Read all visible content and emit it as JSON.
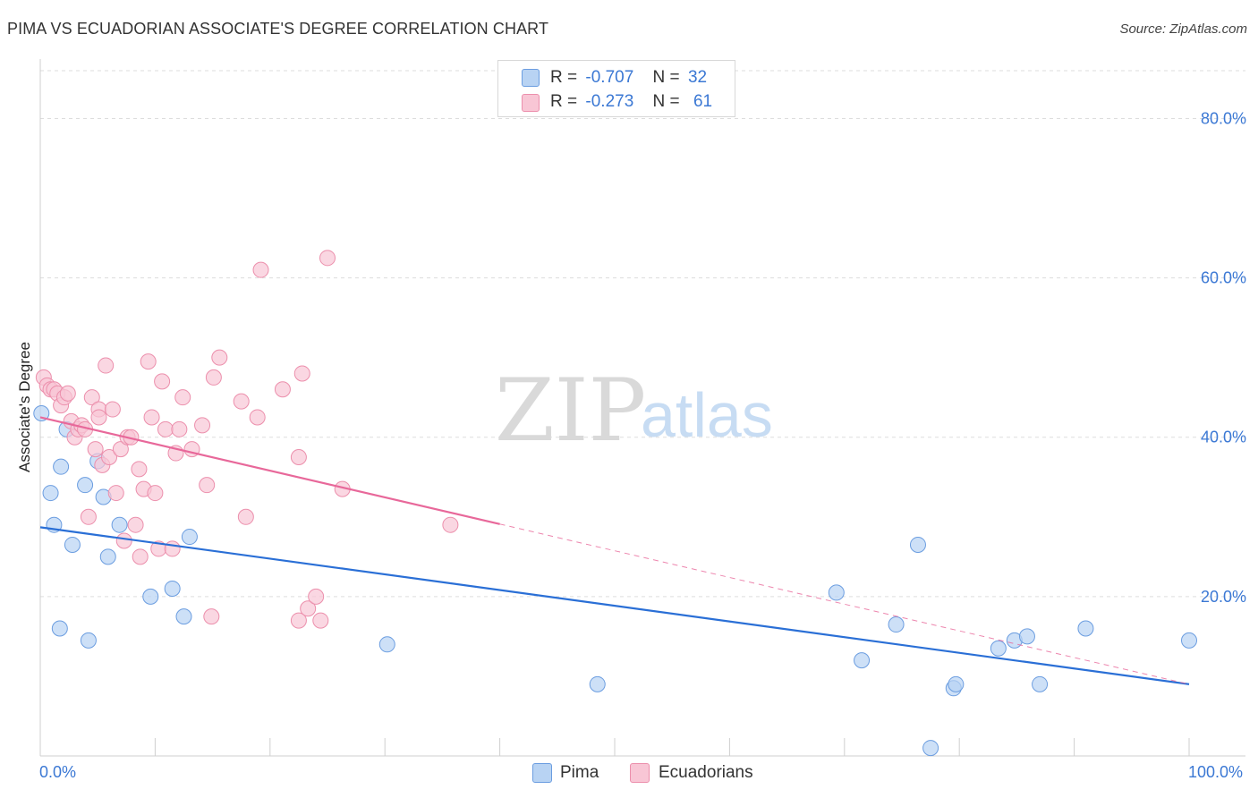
{
  "header": {
    "title": "PIMA VS ECUADORIAN ASSOCIATE'S DEGREE CORRELATION CHART",
    "source": "Source: ZipAtlas.com"
  },
  "legend": {
    "pima": {
      "r_label": "R =",
      "r_value": "-0.707",
      "n_label": "N =",
      "n_value": "32"
    },
    "ecuadorians": {
      "r_label": "R =",
      "r_value": "-0.273",
      "n_label": "N =",
      "n_value": "61"
    }
  },
  "bottom_legend": {
    "pima": "Pima",
    "ecuadorians": "Ecuadorians"
  },
  "watermark": {
    "zip": "ZIP",
    "atlas": "atlas"
  },
  "colors": {
    "pima_fill": "#b8d3f3",
    "pima_stroke": "#6b9de0",
    "pima_line": "#2a6fd6",
    "ecu_fill": "#f8c6d5",
    "ecu_stroke": "#ec8fac",
    "ecu_line": "#e8689a",
    "tick_text": "#3b78d4",
    "grid": "#dddddd"
  },
  "chart_data": {
    "type": "scatter",
    "title": "PIMA VS ECUADORIAN ASSOCIATE'S DEGREE CORRELATION CHART",
    "xlabel": "",
    "ylabel": "Associate's Degree",
    "xlim": [
      0,
      100
    ],
    "ylim": [
      0,
      86
    ],
    "x_tick_labels": [
      "0.0%",
      "100.0%"
    ],
    "y_ticks": [
      20,
      40,
      60,
      80
    ],
    "y_tick_labels": [
      "20.0%",
      "40.0%",
      "60.0%",
      "80.0%"
    ],
    "grid": true,
    "series": [
      {
        "name": "Pima",
        "trend": {
          "x0": 0,
          "y0": 28.7,
          "x1": 100,
          "y1": 9.0,
          "solid_to": 100
        },
        "points": [
          [
            0.1,
            43.0
          ],
          [
            0.9,
            33.0
          ],
          [
            1.2,
            29.0
          ],
          [
            1.7,
            16.0
          ],
          [
            1.8,
            36.3
          ],
          [
            2.3,
            41.0
          ],
          [
            2.8,
            26.5
          ],
          [
            3.9,
            34.0
          ],
          [
            4.2,
            14.5
          ],
          [
            5.0,
            37.0
          ],
          [
            5.5,
            32.5
          ],
          [
            5.9,
            25.0
          ],
          [
            6.9,
            29.0
          ],
          [
            9.6,
            20.0
          ],
          [
            11.5,
            21.0
          ],
          [
            12.5,
            17.5
          ],
          [
            13.0,
            27.5
          ],
          [
            30.2,
            14.0
          ],
          [
            48.5,
            9.0
          ],
          [
            69.3,
            20.5
          ],
          [
            71.5,
            12.0
          ],
          [
            74.5,
            16.5
          ],
          [
            76.4,
            26.5
          ],
          [
            77.5,
            1.0
          ],
          [
            79.5,
            8.5
          ],
          [
            79.7,
            9.0
          ],
          [
            83.4,
            13.5
          ],
          [
            84.8,
            14.5
          ],
          [
            85.9,
            15.0
          ],
          [
            87.0,
            9.0
          ],
          [
            91.0,
            16.0
          ],
          [
            100.0,
            14.5
          ]
        ]
      },
      {
        "name": "Ecuadorians",
        "trend": {
          "x0": 0,
          "y0": 42.5,
          "x1": 100,
          "y1": 9.0,
          "solid_to": 40
        },
        "points": [
          [
            0.3,
            47.5
          ],
          [
            0.6,
            46.5
          ],
          [
            0.9,
            46.0
          ],
          [
            1.2,
            46.0
          ],
          [
            1.5,
            45.5
          ],
          [
            1.8,
            44.0
          ],
          [
            2.1,
            45.0
          ],
          [
            2.4,
            45.5
          ],
          [
            2.7,
            42.0
          ],
          [
            3.0,
            40.0
          ],
          [
            3.3,
            41.0
          ],
          [
            3.6,
            41.5
          ],
          [
            3.9,
            41.0
          ],
          [
            4.2,
            30.0
          ],
          [
            4.5,
            45.0
          ],
          [
            4.8,
            38.5
          ],
          [
            5.1,
            43.5
          ],
          [
            5.1,
            42.5
          ],
          [
            5.4,
            36.5
          ],
          [
            5.7,
            49.0
          ],
          [
            6.0,
            37.5
          ],
          [
            6.3,
            43.5
          ],
          [
            6.6,
            33.0
          ],
          [
            7.0,
            38.5
          ],
          [
            7.3,
            27.0
          ],
          [
            7.6,
            40.0
          ],
          [
            7.9,
            40.0
          ],
          [
            8.3,
            29.0
          ],
          [
            8.6,
            36.0
          ],
          [
            8.7,
            25.0
          ],
          [
            9.0,
            33.5
          ],
          [
            9.4,
            49.5
          ],
          [
            9.7,
            42.5
          ],
          [
            10.0,
            33.0
          ],
          [
            10.3,
            26.0
          ],
          [
            10.6,
            47.0
          ],
          [
            10.9,
            41.0
          ],
          [
            11.5,
            26.0
          ],
          [
            11.8,
            38.0
          ],
          [
            12.1,
            41.0
          ],
          [
            12.4,
            45.0
          ],
          [
            13.2,
            38.5
          ],
          [
            14.1,
            41.5
          ],
          [
            14.5,
            34.0
          ],
          [
            14.9,
            17.5
          ],
          [
            15.1,
            47.5
          ],
          [
            15.6,
            50.0
          ],
          [
            17.5,
            44.5
          ],
          [
            17.9,
            30.0
          ],
          [
            18.9,
            42.5
          ],
          [
            19.2,
            61.0
          ],
          [
            21.1,
            46.0
          ],
          [
            22.5,
            37.5
          ],
          [
            22.5,
            17.0
          ],
          [
            22.8,
            48.0
          ],
          [
            23.3,
            18.5
          ],
          [
            24.0,
            20.0
          ],
          [
            24.4,
            17.0
          ],
          [
            25.0,
            62.5
          ],
          [
            26.3,
            33.5
          ],
          [
            35.7,
            29.0
          ]
        ]
      }
    ]
  }
}
